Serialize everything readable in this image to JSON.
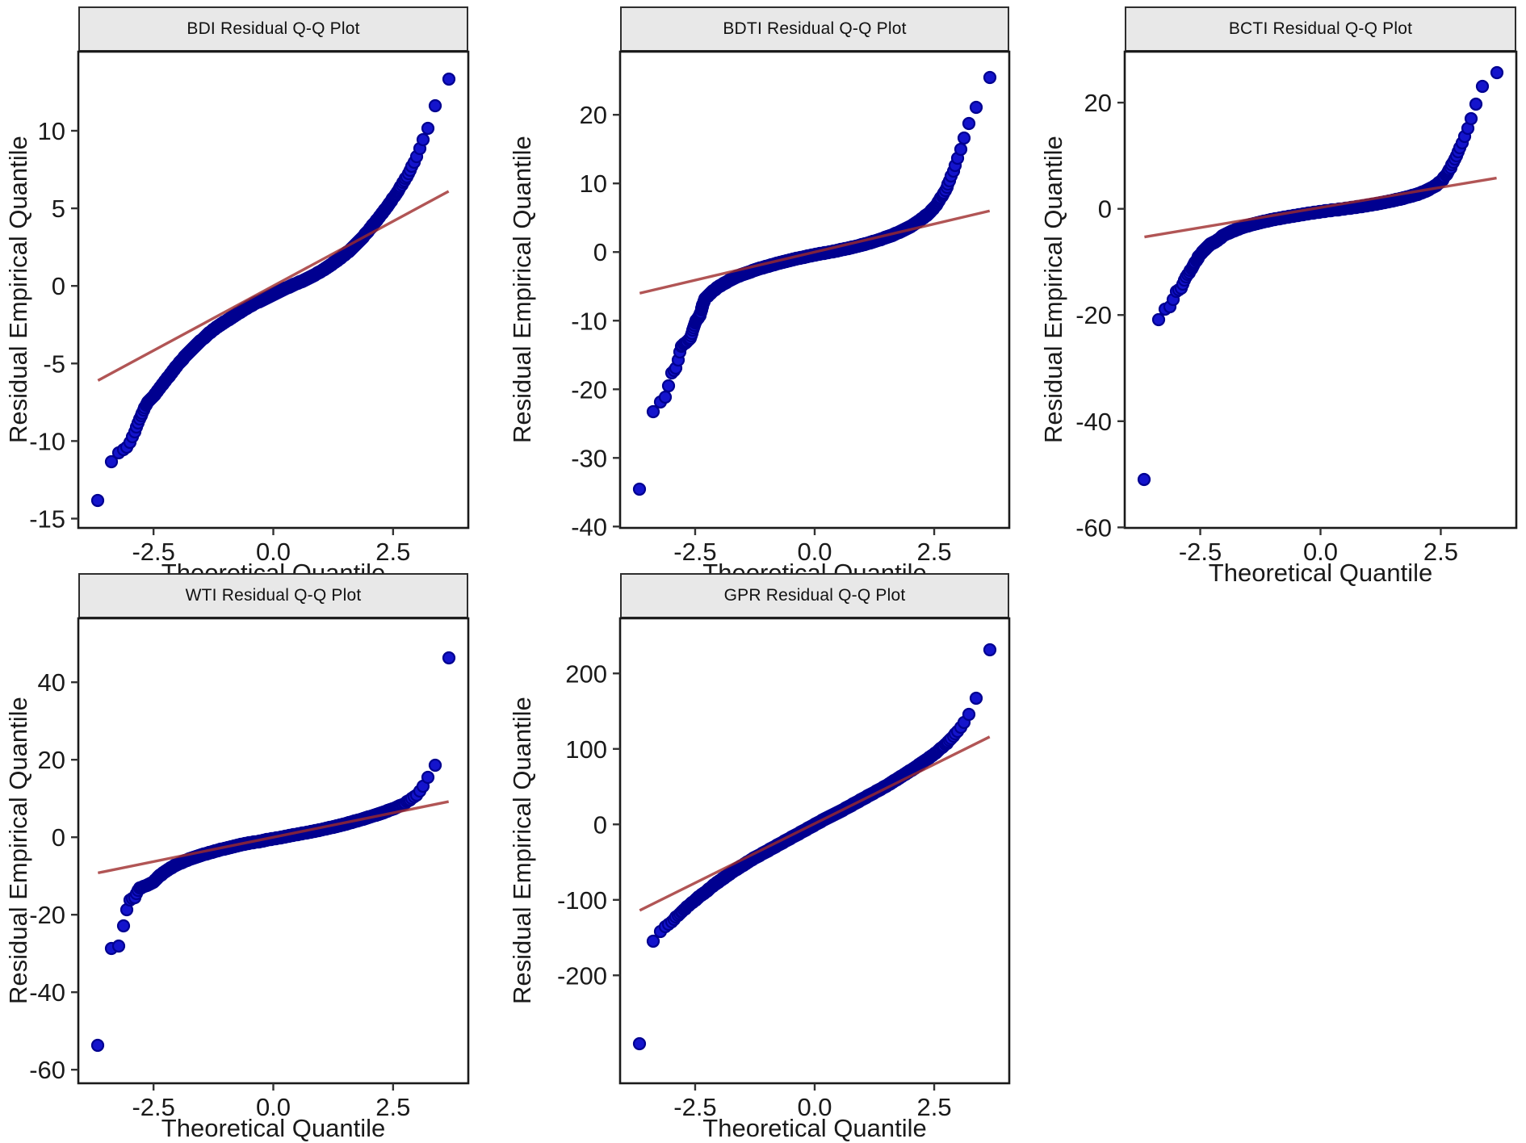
{
  "style": {
    "point_fill": "#1414cc",
    "point_edge": "#000090",
    "refline_color": "#9e2b2b",
    "axis_color": "#1a1a1a",
    "strip_bg": "#e8e8e8"
  },
  "chart_data": [
    {
      "type": "scatter",
      "title": "BDI Residual Q-Q Plot",
      "ylabel": "Residual Empirical Quantile",
      "xlabel": "Theoretical Quantile",
      "xlim": [
        -4.07,
        4.07
      ],
      "ylim": [
        -15.6,
        15.1
      ],
      "xticks": [
        -2.5,
        0,
        2.5
      ],
      "xtick_labels": [
        "-2.5",
        "0.0",
        "2.5"
      ],
      "yticks": [
        10,
        5,
        0,
        -5,
        -10,
        -15
      ],
      "grid": false,
      "legend": false,
      "n_points": 4000,
      "refline": {
        "x1": -3.66,
        "y1": -6.1,
        "x2": 3.66,
        "y2": 6.1
      },
      "qq_curve": [
        [
          -3.7,
          -14.2
        ],
        [
          -3.5,
          -12.2
        ],
        [
          -3.3,
          -10.9
        ],
        [
          -3.15,
          -10.6
        ],
        [
          -3.05,
          -10.4
        ],
        [
          -2.95,
          -9.8
        ],
        [
          -2.85,
          -9.0
        ],
        [
          -2.75,
          -8.3
        ],
        [
          -2.65,
          -7.6
        ],
        [
          -2.5,
          -7.1
        ],
        [
          -2.35,
          -6.5
        ],
        [
          -2.2,
          -5.9
        ],
        [
          -2.0,
          -5.1
        ],
        [
          -1.8,
          -4.4
        ],
        [
          -1.6,
          -3.8
        ],
        [
          -1.4,
          -3.2
        ],
        [
          -1.2,
          -2.7
        ],
        [
          -1.0,
          -2.3
        ],
        [
          -0.8,
          -1.9
        ],
        [
          -0.6,
          -1.5
        ],
        [
          -0.4,
          -1.15
        ],
        [
          -0.2,
          -0.85
        ],
        [
          0,
          -0.55
        ],
        [
          0.2,
          -0.25
        ],
        [
          0.4,
          0.05
        ],
        [
          0.6,
          0.3
        ],
        [
          0.8,
          0.6
        ],
        [
          1.0,
          0.95
        ],
        [
          1.2,
          1.35
        ],
        [
          1.4,
          1.8
        ],
        [
          1.6,
          2.3
        ],
        [
          1.8,
          2.9
        ],
        [
          2.0,
          3.6
        ],
        [
          2.2,
          4.4
        ],
        [
          2.4,
          5.2
        ],
        [
          2.6,
          6.1
        ],
        [
          2.8,
          7.1
        ],
        [
          2.95,
          8.0
        ],
        [
          3.1,
          9.2
        ],
        [
          3.2,
          10.0
        ],
        [
          3.3,
          10.5
        ],
        [
          3.45,
          12.9
        ],
        [
          3.7,
          13.4
        ]
      ]
    },
    {
      "type": "scatter",
      "title": "BDTI Residual Q-Q Plot",
      "ylabel": "Residual Empirical Quantile",
      "xlabel": "Theoretical Quantile",
      "xlim": [
        -4.07,
        4.07
      ],
      "ylim": [
        -40.2,
        29.2
      ],
      "xticks": [
        -2.5,
        0,
        2.5
      ],
      "xtick_labels": [
        "-2.5",
        "0.0",
        "2.5"
      ],
      "yticks": [
        20,
        10,
        0,
        -10,
        -20,
        -30,
        -40
      ],
      "grid": false,
      "legend": false,
      "n_points": 4000,
      "refline": {
        "x1": -3.66,
        "y1": -6.0,
        "x2": 3.66,
        "y2": 6.0
      },
      "qq_curve": [
        [
          -3.7,
          -37
        ],
        [
          -3.5,
          -24
        ],
        [
          -3.35,
          -23.2
        ],
        [
          -3.2,
          -21.6
        ],
        [
          -3.1,
          -21
        ],
        [
          -3.0,
          -17.6
        ],
        [
          -2.9,
          -17
        ],
        [
          -2.8,
          -13.8
        ],
        [
          -2.7,
          -13.2
        ],
        [
          -2.6,
          -12.6
        ],
        [
          -2.5,
          -10.2
        ],
        [
          -2.4,
          -9.2
        ],
        [
          -2.3,
          -6.8
        ],
        [
          -2.15,
          -5.8
        ],
        [
          -2.0,
          -5.0
        ],
        [
          -1.8,
          -4.2
        ],
        [
          -1.6,
          -3.5
        ],
        [
          -1.4,
          -3.0
        ],
        [
          -1.2,
          -2.5
        ],
        [
          -1.0,
          -2.1
        ],
        [
          -0.8,
          -1.7
        ],
        [
          -0.6,
          -1.35
        ],
        [
          -0.4,
          -1.0
        ],
        [
          -0.2,
          -0.7
        ],
        [
          0,
          -0.4
        ],
        [
          0.2,
          -0.15
        ],
        [
          0.4,
          0.1
        ],
        [
          0.6,
          0.4
        ],
        [
          0.8,
          0.7
        ],
        [
          1.0,
          1.05
        ],
        [
          1.2,
          1.45
        ],
        [
          1.4,
          1.9
        ],
        [
          1.6,
          2.4
        ],
        [
          1.8,
          3.0
        ],
        [
          2.0,
          3.7
        ],
        [
          2.2,
          4.6
        ],
        [
          2.4,
          5.7
        ],
        [
          2.55,
          6.9
        ],
        [
          2.7,
          8.5
        ],
        [
          2.8,
          10.0
        ],
        [
          2.9,
          11.8
        ],
        [
          3.0,
          13.8
        ],
        [
          3.1,
          16.0
        ],
        [
          3.2,
          18.2
        ],
        [
          3.3,
          20.0
        ],
        [
          3.4,
          21.5
        ],
        [
          3.5,
          23.2
        ],
        [
          3.6,
          24.6
        ],
        [
          3.7,
          26.0
        ]
      ]
    },
    {
      "type": "scatter",
      "title": "BCTI Residual Q-Q Plot",
      "ylabel": "Residual Empirical Quantile",
      "xlabel": "Theoretical Quantile",
      "xlim": [
        -4.07,
        4.07
      ],
      "ylim": [
        -60.1,
        29.6
      ],
      "xticks": [
        -2.5,
        0,
        2.5
      ],
      "xtick_labels": [
        "-2.5",
        "0.0",
        "2.5"
      ],
      "yticks": [
        20,
        0,
        -20,
        -40,
        -60
      ],
      "grid": false,
      "legend": false,
      "n_points": 4000,
      "refline": {
        "x1": -3.66,
        "y1": -5.3,
        "x2": 3.66,
        "y2": 5.8
      },
      "qq_curve": [
        [
          -3.7,
          -56
        ],
        [
          -3.5,
          -29
        ],
        [
          -3.35,
          -19.6
        ],
        [
          -3.25,
          -19
        ],
        [
          -3.1,
          -18.4
        ],
        [
          -3.0,
          -15.6
        ],
        [
          -2.9,
          -15
        ],
        [
          -2.8,
          -13
        ],
        [
          -2.7,
          -11.5
        ],
        [
          -2.6,
          -10
        ],
        [
          -2.5,
          -8.6
        ],
        [
          -2.4,
          -7.6
        ],
        [
          -2.3,
          -6.7
        ],
        [
          -2.15,
          -6.0
        ],
        [
          -2.0,
          -4.9
        ],
        [
          -1.8,
          -4.1
        ],
        [
          -1.6,
          -3.4
        ],
        [
          -1.4,
          -2.9
        ],
        [
          -1.2,
          -2.45
        ],
        [
          -1.0,
          -2.05
        ],
        [
          -0.8,
          -1.7
        ],
        [
          -0.6,
          -1.4
        ],
        [
          -0.4,
          -1.1
        ],
        [
          -0.2,
          -0.8
        ],
        [
          0,
          -0.55
        ],
        [
          0.2,
          -0.3
        ],
        [
          0.4,
          -0.1
        ],
        [
          0.6,
          0.15
        ],
        [
          0.8,
          0.4
        ],
        [
          1.0,
          0.7
        ],
        [
          1.2,
          1.0
        ],
        [
          1.4,
          1.35
        ],
        [
          1.6,
          1.75
        ],
        [
          1.8,
          2.2
        ],
        [
          2.0,
          2.7
        ],
        [
          2.2,
          3.4
        ],
        [
          2.4,
          4.4
        ],
        [
          2.55,
          5.6
        ],
        [
          2.7,
          7.6
        ],
        [
          2.8,
          9.5
        ],
        [
          2.9,
          11.5
        ],
        [
          3.0,
          13.8
        ],
        [
          3.1,
          16.2
        ],
        [
          3.2,
          18.8
        ],
        [
          3.3,
          22.0
        ],
        [
          3.4,
          23.6
        ],
        [
          3.5,
          24.6
        ],
        [
          3.7,
          25.8
        ]
      ]
    },
    {
      "type": "scatter",
      "title": "WTI Residual Q-Q Plot",
      "ylabel": "Residual Empirical Quantile",
      "xlabel": "Theoretical Quantile",
      "xlim": [
        -4.07,
        4.07
      ],
      "ylim": [
        -63.5,
        56.5
      ],
      "xticks": [
        -2.5,
        0,
        2.5
      ],
      "xtick_labels": [
        "-2.5",
        "0.0",
        "2.5"
      ],
      "yticks": [
        40,
        20,
        0,
        -20,
        -40,
        -60
      ],
      "grid": false,
      "legend": false,
      "n_points": 4000,
      "refline": {
        "x1": -3.66,
        "y1": -9.2,
        "x2": 3.66,
        "y2": 9.2
      },
      "qq_curve": [
        [
          -3.7,
          -58
        ],
        [
          -3.45,
          -29
        ],
        [
          -3.3,
          -28.4
        ],
        [
          -3.2,
          -28
        ],
        [
          -3.1,
          -20.6
        ],
        [
          -3.0,
          -16.2
        ],
        [
          -2.9,
          -15.6
        ],
        [
          -2.8,
          -13.2
        ],
        [
          -2.7,
          -12.7
        ],
        [
          -2.6,
          -12.2
        ],
        [
          -2.5,
          -11.6
        ],
        [
          -2.4,
          -10.2
        ],
        [
          -2.25,
          -8.8
        ],
        [
          -2.1,
          -7.6
        ],
        [
          -1.9,
          -6.4
        ],
        [
          -1.7,
          -5.4
        ],
        [
          -1.5,
          -4.6
        ],
        [
          -1.3,
          -3.9
        ],
        [
          -1.1,
          -3.2
        ],
        [
          -0.9,
          -2.6
        ],
        [
          -0.7,
          -2.0
        ],
        [
          -0.5,
          -1.5
        ],
        [
          -0.3,
          -1.1
        ],
        [
          -0.1,
          -0.6
        ],
        [
          0.1,
          -0.2
        ],
        [
          0.3,
          0.3
        ],
        [
          0.5,
          0.75
        ],
        [
          0.7,
          1.2
        ],
        [
          0.9,
          1.7
        ],
        [
          1.1,
          2.2
        ],
        [
          1.3,
          2.8
        ],
        [
          1.5,
          3.4
        ],
        [
          1.7,
          4.1
        ],
        [
          1.9,
          4.8
        ],
        [
          2.1,
          5.6
        ],
        [
          2.3,
          6.4
        ],
        [
          2.5,
          7.3
        ],
        [
          2.7,
          8.4
        ],
        [
          2.85,
          9.6
        ],
        [
          3.0,
          11.0
        ],
        [
          3.1,
          12.6
        ],
        [
          3.2,
          14.6
        ],
        [
          3.3,
          17.6
        ],
        [
          3.4,
          19.0
        ],
        [
          3.5,
          25.6
        ],
        [
          3.7,
          51.0
        ]
      ]
    },
    {
      "type": "scatter",
      "title": "GPR Residual Q-Q Plot",
      "ylabel": "Residual Empirical Quantile",
      "xlabel": "Theoretical Quantile",
      "xlim": [
        -4.07,
        4.07
      ],
      "ylim": [
        -343,
        273
      ],
      "xticks": [
        -2.5,
        0,
        2.5
      ],
      "xtick_labels": [
        "-2.5",
        "0.0",
        "2.5"
      ],
      "yticks": [
        200,
        100,
        0,
        -100,
        -200
      ],
      "grid": false,
      "legend": false,
      "n_points": 4000,
      "refline": {
        "x1": -3.66,
        "y1": -114,
        "x2": 3.66,
        "y2": 116
      },
      "qq_curve": [
        [
          -3.7,
          -315
        ],
        [
          -3.5,
          -185
        ],
        [
          -3.35,
          -150
        ],
        [
          -3.25,
          -143
        ],
        [
          -3.15,
          -137
        ],
        [
          -3.0,
          -129
        ],
        [
          -2.85,
          -120
        ],
        [
          -2.7,
          -111
        ],
        [
          -2.55,
          -103
        ],
        [
          -2.4,
          -95
        ],
        [
          -2.25,
          -88
        ],
        [
          -2.1,
          -80
        ],
        [
          -1.9,
          -71
        ],
        [
          -1.7,
          -62
        ],
        [
          -1.5,
          -54
        ],
        [
          -1.3,
          -46
        ],
        [
          -1.1,
          -39
        ],
        [
          -0.9,
          -32
        ],
        [
          -0.7,
          -25
        ],
        [
          -0.5,
          -18
        ],
        [
          -0.3,
          -11
        ],
        [
          -0.1,
          -4
        ],
        [
          0.1,
          3
        ],
        [
          0.3,
          10
        ],
        [
          0.5,
          16
        ],
        [
          0.7,
          23
        ],
        [
          0.9,
          30
        ],
        [
          1.1,
          37
        ],
        [
          1.3,
          44
        ],
        [
          1.5,
          51
        ],
        [
          1.7,
          59
        ],
        [
          1.9,
          67
        ],
        [
          2.1,
          75
        ],
        [
          2.3,
          84
        ],
        [
          2.5,
          93
        ],
        [
          2.65,
          101
        ],
        [
          2.8,
          110
        ],
        [
          2.95,
          120
        ],
        [
          3.1,
          132
        ],
        [
          3.2,
          142
        ],
        [
          3.3,
          155
        ],
        [
          3.45,
          180
        ],
        [
          3.55,
          192
        ],
        [
          3.7,
          245
        ]
      ]
    }
  ]
}
